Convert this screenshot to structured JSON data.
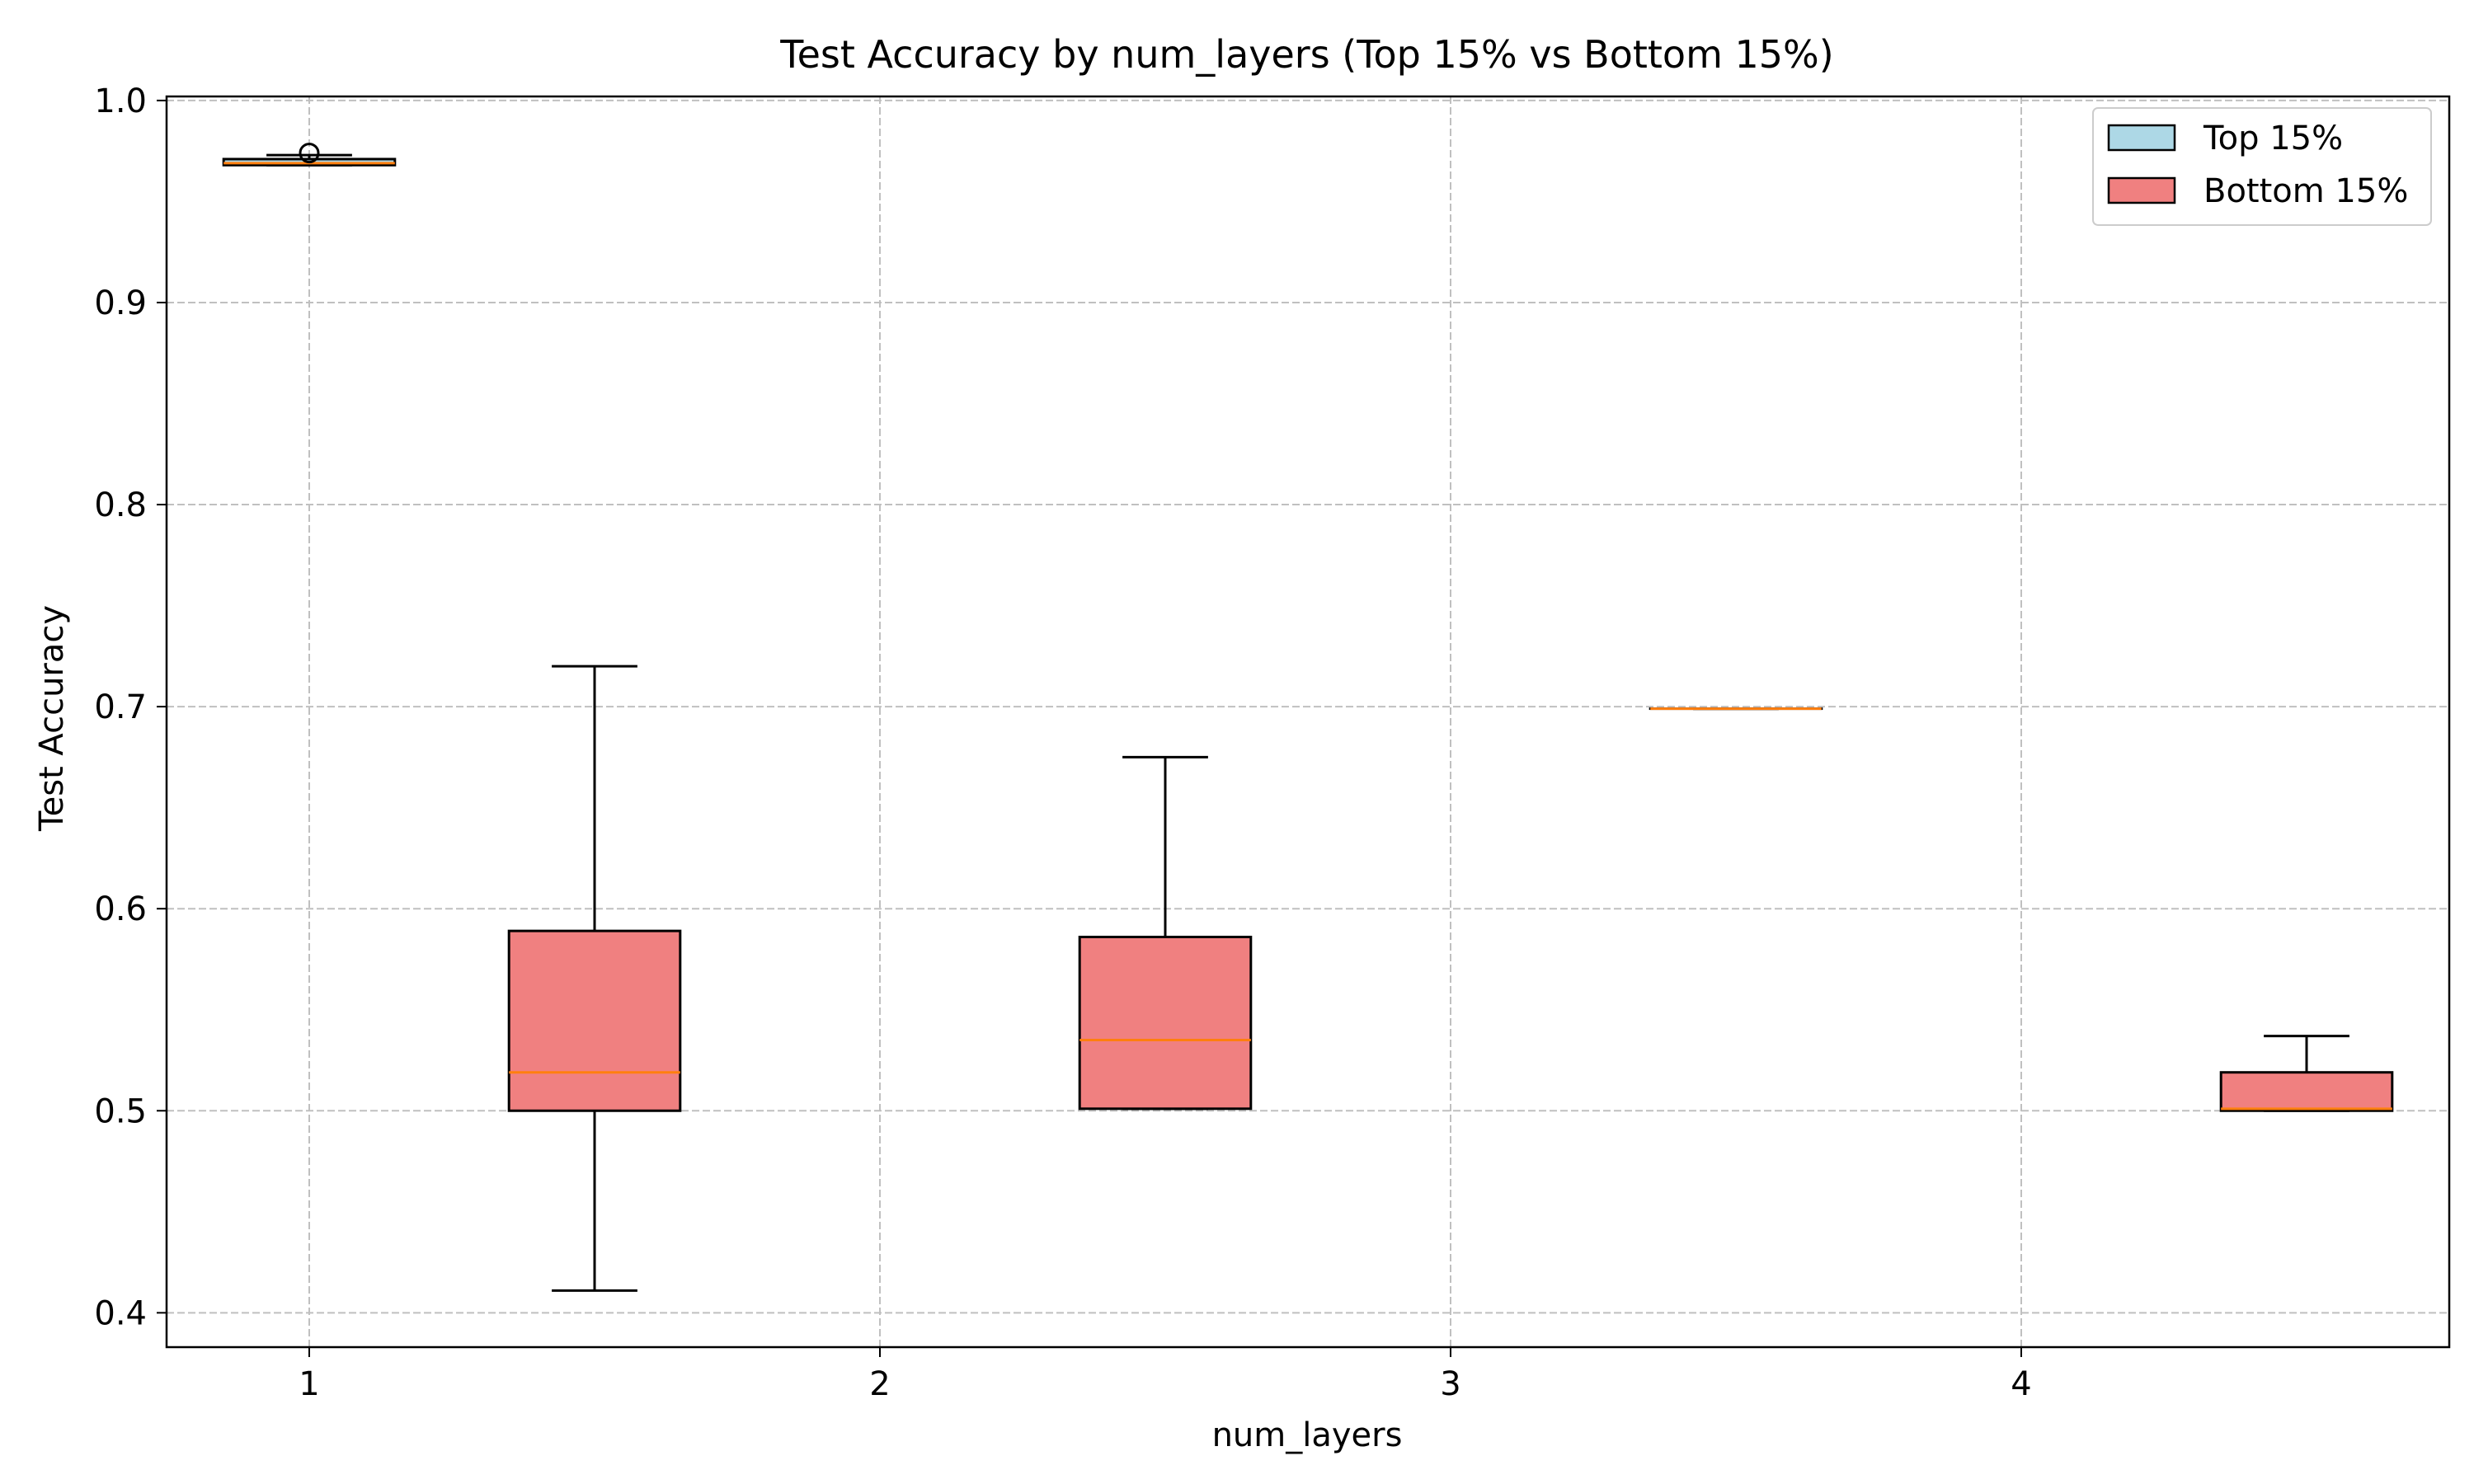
{
  "chart_data": {
    "type": "box",
    "title": "Test Accuracy by num_layers (Top 15% vs Bottom 15%)",
    "xlabel": "num_layers",
    "ylabel": "Test Accuracy",
    "xlim": [
      0.75,
      4.75
    ],
    "ylim": [
      0.383,
      1.002
    ],
    "xticks": [
      1,
      2,
      3,
      4
    ],
    "xtick_labels": [
      "1",
      "2",
      "3",
      "4"
    ],
    "yticks": [
      0.4,
      0.5,
      0.6,
      0.7,
      0.8,
      0.9,
      1.0
    ],
    "ytick_labels": [
      "0.4",
      "0.5",
      "0.6",
      "0.7",
      "0.8",
      "0.9",
      "1.0"
    ],
    "grid": true,
    "legend_position": "top-right",
    "box_width": 0.3,
    "colors": {
      "top": "#add8e6",
      "bottom": "#f08080",
      "median": "#ff7f0e",
      "grid": "#c0c0c0",
      "edge": "#000000"
    },
    "series": [
      {
        "name": "Top 15%",
        "color": "#add8e6",
        "boxes": [
          {
            "x": 1,
            "whisker_low": 0.968,
            "q1": 0.968,
            "median": 0.969,
            "q3": 0.971,
            "whisker_high": 0.973,
            "outliers": [
              0.974
            ]
          },
          {
            "x": 3.5,
            "whisker_low": 0.699,
            "q1": 0.699,
            "median": 0.699,
            "q3": 0.699,
            "whisker_high": 0.699,
            "outliers": []
          }
        ]
      },
      {
        "name": "Bottom 15%",
        "color": "#f08080",
        "boxes": [
          {
            "x": 1.5,
            "whisker_low": 0.411,
            "q1": 0.5,
            "median": 0.519,
            "q3": 0.589,
            "whisker_high": 0.72,
            "outliers": []
          },
          {
            "x": 2.5,
            "whisker_low": 0.501,
            "q1": 0.501,
            "median": 0.535,
            "q3": 0.586,
            "whisker_high": 0.675,
            "outliers": []
          },
          {
            "x": 4.5,
            "whisker_low": 0.5,
            "q1": 0.5,
            "median": 0.501,
            "q3": 0.519,
            "whisker_high": 0.537,
            "outliers": []
          }
        ]
      }
    ]
  }
}
